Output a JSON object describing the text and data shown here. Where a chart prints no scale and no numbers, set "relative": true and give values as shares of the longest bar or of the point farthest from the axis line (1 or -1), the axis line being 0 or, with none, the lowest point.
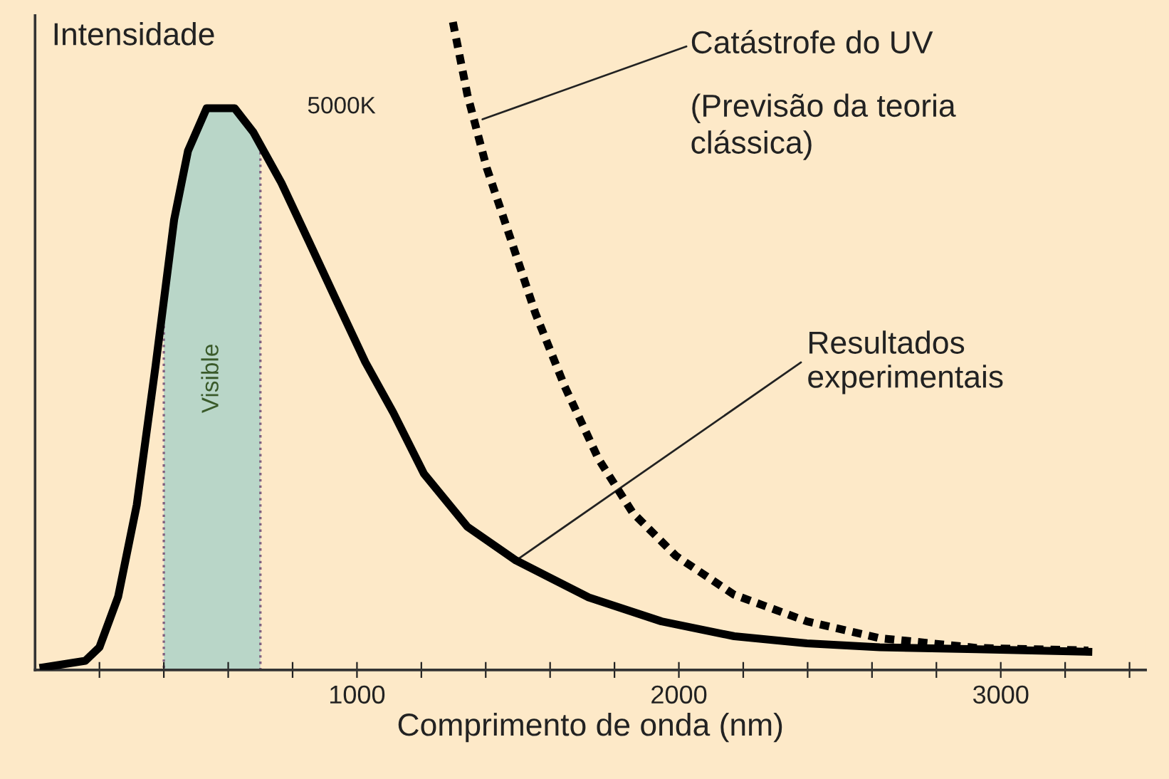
{
  "chart_data": {
    "type": "line",
    "relative": true,
    "xlabel": "Comprimento de onda (nm)",
    "ylabel": "Intensidade",
    "xlim": [
      0,
      3450
    ],
    "xticks": [
      {
        "value": 200,
        "label": null
      },
      {
        "value": 400,
        "label": null
      },
      {
        "value": 600,
        "label": null
      },
      {
        "value": 800,
        "label": null
      },
      1000,
      {
        "value": 1200,
        "label": null
      },
      {
        "value": 1400,
        "label": null
      },
      {
        "value": 1600,
        "label": null
      },
      {
        "value": 1800,
        "label": null
      },
      2000,
      {
        "value": 2200,
        "label": null
      },
      {
        "value": 2400,
        "label": null
      },
      {
        "value": 2600,
        "label": null
      },
      {
        "value": 2800,
        "label": null
      },
      3000,
      {
        "value": 3200,
        "label": null
      },
      {
        "value": 3400,
        "label": null
      }
    ],
    "tick_labels": "x",
    "grid": false,
    "marker": "none",
    "series": [
      {
        "color": "#000000",
        "line_style": "solid",
        "x": [
          26,
          156,
          200,
          258,
          316,
          374,
          432,
          475,
          533,
          620,
          678,
          765,
          852,
          939,
          1026,
          1113,
          1208,
          1343,
          1494,
          1720,
          1946,
          2172,
          2398,
          2624,
          2925,
          3272
        ],
        "values": [
          0.004,
          0.014,
          0.035,
          0.113,
          0.255,
          0.468,
          0.695,
          0.801,
          0.867,
          0.867,
          0.83,
          0.752,
          0.66,
          0.567,
          0.475,
          0.397,
          0.303,
          0.221,
          0.169,
          0.112,
          0.075,
          0.052,
          0.041,
          0.035,
          0.032,
          0.028
        ]
      },
      {
        "color": "#000000",
        "line_style": "dotted",
        "x": [
          1298,
          1343,
          1403,
          1479,
          1554,
          1645,
          1750,
          1856,
          1991,
          2172,
          2398,
          2624,
          2925,
          3272
        ],
        "values": [
          1.0,
          0.888,
          0.775,
          0.663,
          0.551,
          0.438,
          0.326,
          0.243,
          0.176,
          0.116,
          0.075,
          0.049,
          0.034,
          0.03
        ]
      }
    ],
    "bands": [
      {
        "axis": "x",
        "from": 400,
        "to": 700,
        "label": "Visible",
        "color": "#b9d6c8"
      }
    ],
    "annotations": [
      "5000K",
      {
        "text": "Catástrofe do UV",
        "x": 1390,
        "y": 0.85
      },
      "(Previsão da teoria\nclássica)",
      {
        "text": "Resultados\nexperimentais",
        "x": 1494,
        "y": 0.169
      }
    ]
  }
}
